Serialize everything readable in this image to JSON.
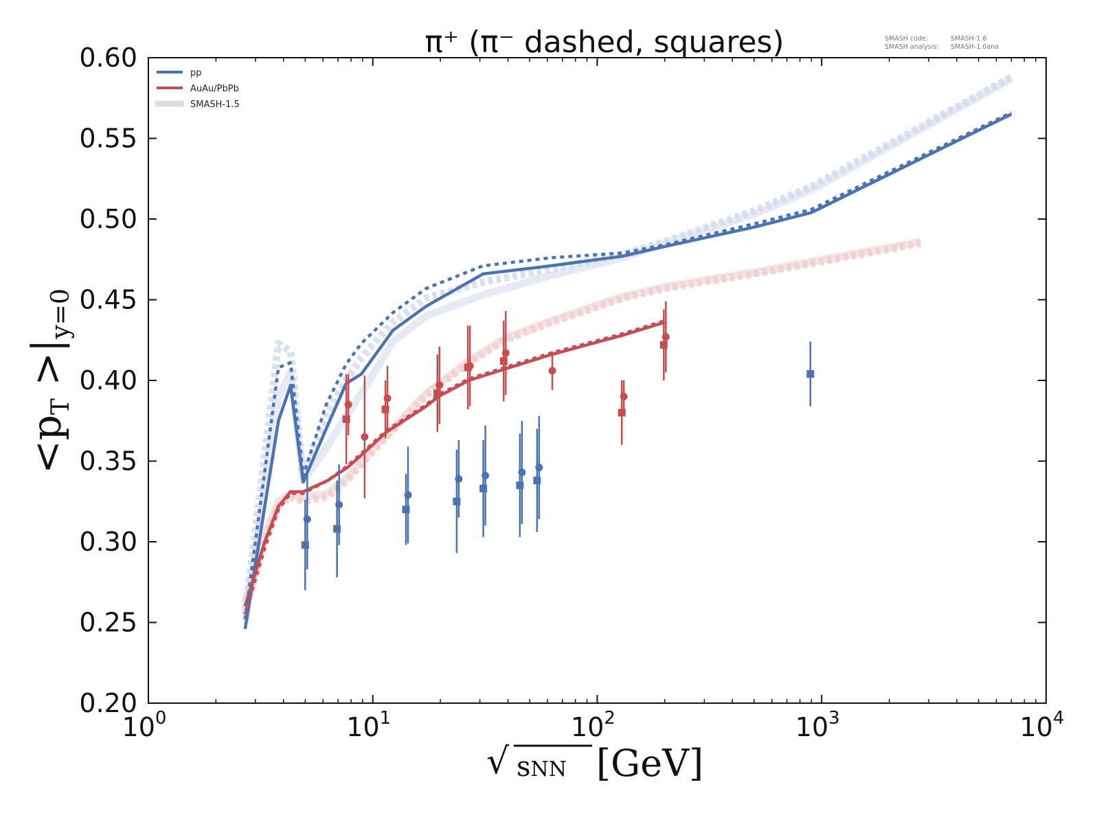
{
  "chart_data": {
    "type": "line",
    "title": "π⁺ (π⁻ dashed, squares)",
    "xlabel": "√sNN [GeV]",
    "ylabel": "<pT>|y=0",
    "xscale": "log",
    "xlim": [
      1,
      10000
    ],
    "ylim": [
      0.2,
      0.6
    ],
    "grid": false,
    "legend_position": "top-left",
    "x_ticks": [
      {
        "value": 1,
        "base": "10",
        "exp": "0"
      },
      {
        "value": 10,
        "base": "10",
        "exp": "1"
      },
      {
        "value": 100,
        "base": "10",
        "exp": "2"
      },
      {
        "value": 1000,
        "base": "10",
        "exp": "3"
      },
      {
        "value": 10000,
        "base": "10",
        "exp": "4"
      }
    ],
    "y_ticks": [
      "0.20",
      "0.25",
      "0.30",
      "0.35",
      "0.40",
      "0.45",
      "0.50",
      "0.55",
      "0.60"
    ],
    "annotations": {
      "code_label": "SMASH code:",
      "code_value": "SMASH-1.6",
      "analysis_label": "SMASH analysis:",
      "analysis_value": "SMASH-1.6ana"
    },
    "legend": [
      {
        "label": "pp",
        "color": "#4c72b0",
        "style": "solid"
      },
      {
        "label": "AuAu/PbPb",
        "color": "#c44e52",
        "style": "solid"
      },
      {
        "label": "SMASH-1.5",
        "color": "#dddddd",
        "style": "thick-faded"
      }
    ],
    "colors": {
      "pp": "#4c72b0",
      "AuAu": "#c44e52",
      "pp_old": "#d3dcec",
      "AuAu_old": "#efcfd0"
    },
    "series": [
      {
        "name": "pp π+ (SMASH-1.6)",
        "group": "pp",
        "style": "solid",
        "x": [
          2.7,
          3.8,
          4.3,
          4.9,
          6.2,
          7.6,
          8.9,
          12.3,
          17.3,
          31,
          62,
          130,
          200,
          500,
          900,
          7000
        ],
        "y": [
          0.246,
          0.375,
          0.397,
          0.337,
          0.37,
          0.398,
          0.404,
          0.431,
          0.446,
          0.466,
          0.471,
          0.477,
          0.483,
          0.495,
          0.504,
          0.565
        ]
      },
      {
        "name": "pp π- (SMASH-1.6)",
        "group": "pp",
        "style": "dashed",
        "x": [
          2.7,
          3.8,
          4.3,
          4.9,
          6.2,
          7.6,
          8.9,
          12.3,
          17.3,
          31,
          62,
          130,
          200,
          500,
          900,
          7000
        ],
        "y": [
          0.252,
          0.408,
          0.411,
          0.341,
          0.385,
          0.41,
          0.423,
          0.442,
          0.457,
          0.471,
          0.476,
          0.479,
          0.484,
          0.497,
          0.506,
          0.566
        ]
      },
      {
        "name": "pp π+ (SMASH-1.5)",
        "group": "pp_old",
        "style": "old-solid",
        "x": [
          2.7,
          3.8,
          4.3,
          4.9,
          6.2,
          7.6,
          8.9,
          12.3,
          17.3,
          31,
          62,
          130,
          200,
          500,
          900,
          7000
        ],
        "y": [
          0.25,
          0.39,
          0.405,
          0.338,
          0.358,
          0.378,
          0.392,
          0.424,
          0.44,
          0.453,
          0.465,
          0.476,
          0.485,
          0.503,
          0.518,
          0.587
        ]
      },
      {
        "name": "pp π- (SMASH-1.5)",
        "group": "pp_old",
        "style": "old-dashed",
        "x": [
          2.7,
          3.8,
          4.3,
          4.9,
          6.2,
          7.6,
          8.9,
          12.3,
          17.3,
          31,
          62,
          130,
          200,
          500,
          900,
          7000
        ],
        "y": [
          0.255,
          0.423,
          0.418,
          0.34,
          0.378,
          0.4,
          0.414,
          0.436,
          0.451,
          0.461,
          0.469,
          0.478,
          0.486,
          0.505,
          0.52,
          0.588
        ]
      },
      {
        "name": "AuAu π+ (SMASH-1.6)",
        "group": "AuAu",
        "style": "solid",
        "x": [
          2.7,
          3.3,
          3.8,
          4.3,
          4.9,
          6.3,
          7.7,
          9.1,
          11.5,
          17.3,
          19.6,
          26.8,
          38.7,
          62.4,
          130,
          200
        ],
        "y": [
          0.26,
          0.3,
          0.322,
          0.331,
          0.331,
          0.338,
          0.346,
          0.355,
          0.368,
          0.384,
          0.39,
          0.4,
          0.407,
          0.416,
          0.428,
          0.436
        ]
      },
      {
        "name": "AuAu π- (SMASH-1.6)",
        "group": "AuAu",
        "style": "dashed",
        "x": [
          2.7,
          3.3,
          3.8,
          4.3,
          4.9,
          6.3,
          7.7,
          9.1,
          11.5,
          17.3,
          19.6,
          26.8,
          38.7,
          62.4,
          130,
          200
        ],
        "y": [
          0.255,
          0.296,
          0.32,
          0.33,
          0.33,
          0.338,
          0.347,
          0.356,
          0.369,
          0.385,
          0.391,
          0.401,
          0.408,
          0.417,
          0.429,
          0.437
        ]
      },
      {
        "name": "AuAu π+ (SMASH-1.5)",
        "group": "AuAu_old",
        "style": "old-solid",
        "x": [
          2.7,
          3.3,
          3.8,
          4.3,
          4.9,
          6.3,
          7.7,
          9.1,
          11.5,
          17.3,
          26.8,
          38.7,
          62.4,
          130,
          200,
          500,
          2760
        ],
        "y": [
          0.262,
          0.305,
          0.325,
          0.33,
          0.327,
          0.33,
          0.34,
          0.352,
          0.366,
          0.392,
          0.412,
          0.426,
          0.437,
          0.452,
          0.458,
          0.467,
          0.486
        ]
      },
      {
        "name": "AuAu π- (SMASH-1.5)",
        "group": "AuAu_old",
        "style": "old-dashed",
        "x": [
          2.7,
          3.3,
          3.8,
          4.3,
          4.9,
          6.3,
          7.7,
          9.1,
          11.5,
          17.3,
          26.8,
          38.7,
          62.4,
          130,
          200,
          500,
          2760
        ],
        "y": [
          0.258,
          0.302,
          0.322,
          0.328,
          0.325,
          0.328,
          0.338,
          0.35,
          0.365,
          0.391,
          0.411,
          0.425,
          0.436,
          0.451,
          0.457,
          0.466,
          0.485
        ]
      }
    ],
    "data_points": [
      {
        "name": "pp data π+",
        "group": "pp",
        "marker": "circle",
        "x": [
          5.05,
          7.0,
          14.2,
          23.9,
          31.4,
          45.7,
          54.5
        ],
        "y": [
          0.314,
          0.323,
          0.329,
          0.339,
          0.341,
          0.343,
          0.346
        ],
        "err": [
          0.031,
          0.025,
          0.03,
          0.024,
          0.031,
          0.032,
          0.032
        ]
      },
      {
        "name": "pp data π-",
        "group": "pp",
        "marker": "square",
        "x": [
          5.05,
          7.0,
          14.2,
          23.9,
          31.4,
          45.7,
          54.5,
          900
        ],
        "y": [
          0.298,
          0.308,
          0.32,
          0.325,
          0.333,
          0.335,
          0.338,
          0.404
        ],
        "err": [
          0.028,
          0.03,
          0.022,
          0.032,
          0.03,
          0.032,
          0.032,
          0.02
        ]
      },
      {
        "name": "AuAu data π+",
        "group": "AuAu",
        "marker": "circle",
        "x": [
          7.7,
          9.1,
          11.5,
          19.6,
          26.8,
          38.7,
          62.4,
          130,
          200
        ],
        "y": [
          0.385,
          0.365,
          0.389,
          0.397,
          0.409,
          0.417,
          0.406,
          0.39,
          0.427
        ],
        "err": [
          0.019,
          0.038,
          0.02,
          0.024,
          0.025,
          0.026,
          0.012,
          0.01,
          0.022
        ]
      },
      {
        "name": "AuAu data π-",
        "group": "AuAu",
        "marker": "square",
        "x": [
          7.7,
          11.5,
          19.6,
          26.8,
          38.7,
          130,
          200
        ],
        "y": [
          0.376,
          0.382,
          0.392,
          0.408,
          0.412,
          0.38,
          0.422
        ],
        "err": [
          0.028,
          0.018,
          0.024,
          0.026,
          0.025,
          0.02,
          0.022
        ]
      }
    ]
  }
}
